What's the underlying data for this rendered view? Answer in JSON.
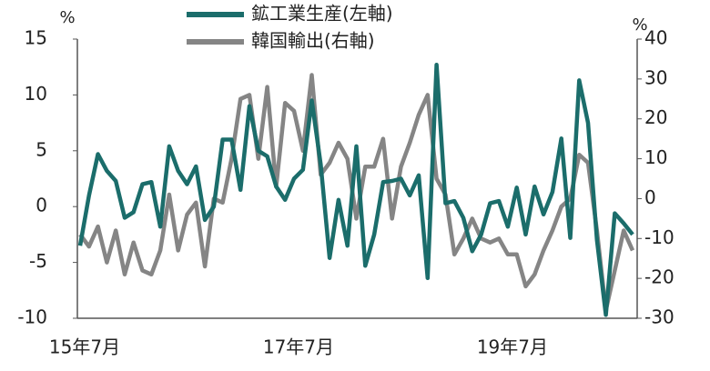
{
  "chart_data": {
    "type": "line",
    "y_label": "%",
    "y2_label": "%",
    "categories": [
      "15年7月",
      null,
      null,
      null,
      null,
      null,
      null,
      null,
      null,
      null,
      null,
      null,
      null,
      null,
      null,
      null,
      null,
      null,
      null,
      null,
      null,
      null,
      null,
      null,
      "17年7月",
      null,
      null,
      null,
      null,
      null,
      null,
      null,
      null,
      null,
      null,
      null,
      null,
      null,
      null,
      null,
      null,
      null,
      null,
      null,
      null,
      null,
      null,
      null,
      "19年7月",
      null,
      null,
      null,
      null,
      null,
      null,
      null,
      null,
      null,
      null,
      null,
      null,
      null,
      null
    ],
    "series": [
      {
        "name": "鉱工業生産(左軸)",
        "color": "#1b6d6b",
        "axis": "y",
        "values": [
          -3.5,
          1,
          4.7,
          3.2,
          2.3,
          -1,
          -0.5,
          2,
          2.2,
          -1.8,
          5.4,
          3.2,
          2,
          3.6,
          -1.2,
          0,
          6,
          6,
          1.5,
          9,
          5,
          4.5,
          1.8,
          0.6,
          2.5,
          3.3,
          9.5,
          3.8,
          -4.6,
          0.6,
          -3.5,
          5.4,
          -5.3,
          -2.5,
          2.2,
          2.3,
          2.5,
          1,
          2.8,
          -6.4,
          12.7,
          0.3,
          0.5,
          -1,
          -4,
          -2.5,
          0.3,
          0.5,
          -1.8,
          1.7,
          -2.5,
          1.8,
          -0.7,
          1.3,
          6.1,
          -2.8,
          11.3,
          7.5,
          -3,
          -9.7,
          -0.6,
          -1.5,
          -2.5
        ]
      },
      {
        "name": "韓国輸出(右軸)",
        "color": "#858585",
        "axis": "y2",
        "values": [
          -9,
          -12,
          -7,
          -16,
          -8,
          -19,
          -11,
          -18,
          -19,
          -13,
          1,
          -13,
          -4,
          -1,
          -17,
          0,
          -1,
          10,
          25,
          26,
          10,
          28,
          3,
          24,
          22,
          12,
          31,
          6,
          9,
          14,
          10,
          -5,
          8,
          8,
          15,
          -5,
          8,
          14,
          21,
          26,
          5,
          1,
          -14,
          -10,
          -5,
          -10,
          -11,
          -10,
          -14,
          -14,
          -22,
          -19,
          -13,
          -8,
          -2,
          0,
          11,
          9,
          -8,
          -28,
          -18,
          -8,
          -13
        ]
      }
    ],
    "ylim": [
      -10,
      15
    ],
    "yticks": [
      -10,
      -5,
      0,
      5,
      10,
      15
    ],
    "y2lim": [
      -30,
      40
    ],
    "y2ticks": [
      -30,
      -20,
      -10,
      0,
      10,
      20,
      30,
      40
    ]
  }
}
